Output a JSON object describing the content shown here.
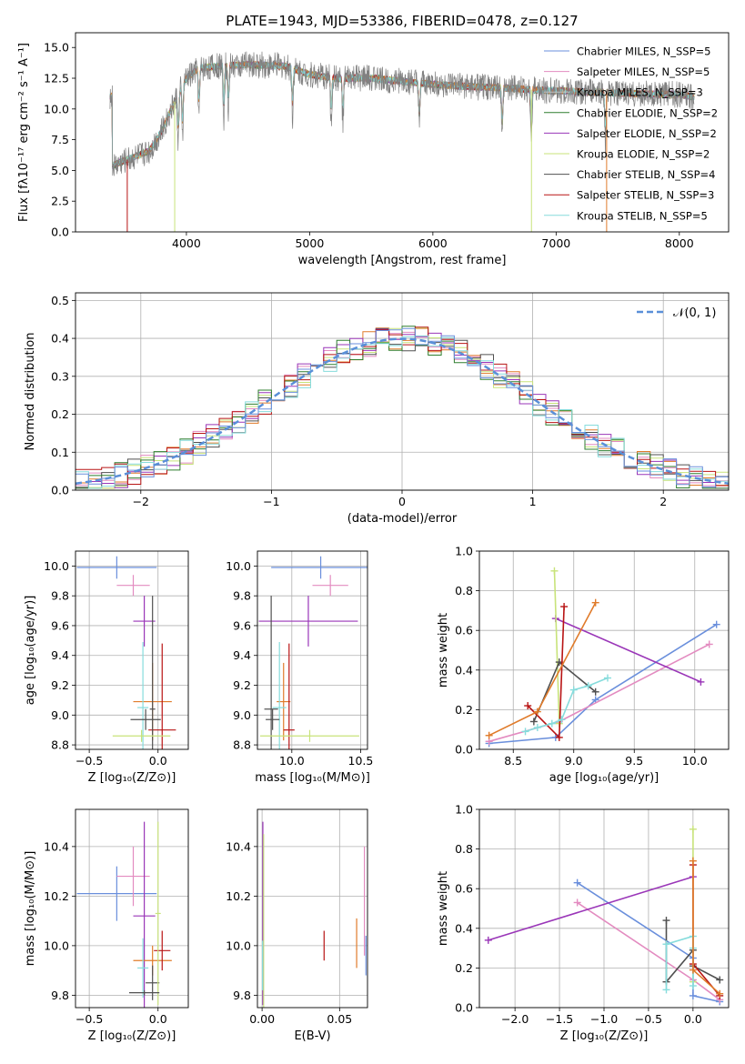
{
  "colors": {
    "chabrier_miles": "#6a8fdc",
    "salpeter_miles": "#e38bc0",
    "kroupa_miles": "#c0c0c0",
    "chabrier_elodie": "#2f7f2f",
    "salpeter_elodie": "#9a36b8",
    "kroupa_elodie": "#c8e37a",
    "chabrier_stelib": "#505050",
    "salpeter_stelib": "#b81414",
    "kroupa_stelib": "#86dcdc",
    "orange": "#e07b2a",
    "normal": "#5a8fd8"
  },
  "chart_data": [
    {
      "id": "spectrum",
      "type": "line",
      "title": "PLATE=1943, MJD=53386, FIBERID=0478, z=0.127",
      "xlabel": "wavelength [Angstrom, rest frame]",
      "ylabel": "Flux [fλ10⁻¹⁷ erg cm⁻² s⁻¹ A⁻¹]",
      "xlim": [
        3100,
        8400
      ],
      "ylim": [
        0,
        16.2
      ],
      "xticks": [
        4000,
        5000,
        6000,
        7000,
        8000
      ],
      "yticks": [
        0.0,
        2.5,
        5.0,
        7.5,
        10.0,
        12.5,
        15.0
      ],
      "ytick_labels": [
        "0.0",
        "2.5",
        "5.0",
        "7.5",
        "10.0",
        "12.5",
        "15.0"
      ],
      "legend": [
        "Chabrier MILES, N_SSP=5",
        "Salpeter MILES, N_SSP=5",
        "Kroupa MILES, N_SSP=3",
        "Chabrier ELODIE, N_SSP=2",
        "Salpeter ELODIE, N_SSP=2",
        "Kroupa ELODIE, N_SSP=2",
        "Chabrier STELIB, N_SSP=4",
        "Salpeter STELIB, N_SSP=3",
        "Kroupa STELIB, N_SSP=5"
      ],
      "legend_placement": "upper-right",
      "continuum": {
        "x": [
          3400,
          3500,
          3600,
          3700,
          3800,
          3900,
          4000,
          4100,
          4300,
          4500,
          4800,
          5000,
          5200,
          5500,
          5800,
          6000,
          6300,
          6600,
          6900,
          7200,
          7500,
          7800,
          8000,
          8100
        ],
        "y": [
          5.4,
          5.8,
          6.2,
          6.6,
          8.2,
          10.5,
          12.5,
          13.3,
          13.5,
          13.6,
          13.5,
          12.8,
          12.5,
          12.5,
          12.2,
          12.0,
          11.8,
          11.7,
          11.5,
          11.4,
          11.3,
          11.2,
          11.2,
          11.0
        ]
      },
      "absorption_lines": [
        3934,
        3969,
        4102,
        4304,
        4341,
        4861,
        5175,
        5270,
        5890,
        6563,
        6800,
        7400
      ]
    },
    {
      "id": "residuals",
      "type": "line",
      "xlabel": "(data-model)/error",
      "ylabel": "Normed distribution",
      "xlim": [
        -2.5,
        2.5
      ],
      "ylim": [
        0,
        0.52
      ],
      "xticks": [
        -2,
        -1,
        0,
        1,
        2
      ],
      "xtick_labels": [
        "−2",
        "−1",
        "0",
        "1",
        "2"
      ],
      "yticks": [
        0.0,
        0.1,
        0.2,
        0.3,
        0.4,
        0.5
      ],
      "ytick_labels": [
        "0.0",
        "0.1",
        "0.2",
        "0.3",
        "0.4",
        "0.5"
      ],
      "grid": true,
      "legend": [
        "𝒩(0, 1)"
      ],
      "legend_placement": "upper-right",
      "normal_curve": {
        "mu": 0,
        "sigma": 1
      }
    },
    {
      "id": "age-vs-Z",
      "type": "scatter",
      "xlabel": "Z [log₁₀(Z/Z⊙)]",
      "ylabel": "age  [log₁₀(age/yr)]",
      "xlim": [
        -0.6,
        0.22
      ],
      "ylim": [
        8.77,
        10.1
      ],
      "xticks": [
        -0.5,
        0.0
      ],
      "xtick_labels": [
        "−0.5",
        "0.0"
      ],
      "yticks": [
        8.8,
        9.0,
        9.2,
        9.4,
        9.6,
        9.8,
        10.0
      ],
      "ytick_labels": [
        "8.8",
        "9.0",
        "9.2",
        "9.4",
        "9.6",
        "9.8",
        "10.0"
      ],
      "grid": true,
      "points": [
        {
          "x": -0.3,
          "y": 9.99,
          "xerr": 0.29,
          "yerr": 0.075,
          "color": "chabrier_miles"
        },
        {
          "x": -0.18,
          "y": 9.87,
          "xerr": 0.12,
          "yerr": 0.07,
          "color": "salpeter_miles"
        },
        {
          "x": -0.1,
          "y": 9.63,
          "xerr": 0.08,
          "yerr": 0.17,
          "color": "salpeter_elodie"
        },
        {
          "x": -0.04,
          "y": 9.09,
          "xerr": 0.14,
          "yerr": 0.26,
          "color": "orange"
        },
        {
          "x": 0.03,
          "y": 8.9,
          "xerr": 0.1,
          "yerr": 0.58,
          "color": "salpeter_stelib"
        },
        {
          "x": -0.11,
          "y": 9.05,
          "xerr": 0.04,
          "yerr": 0.44,
          "color": "kroupa_stelib"
        },
        {
          "x": -0.04,
          "y": 9.04,
          "xerr": 0.02,
          "yerr": 0.76,
          "color": "chabrier_stelib"
        },
        {
          "x": -0.12,
          "y": 8.86,
          "xerr": 0.21,
          "yerr": 0.04,
          "color": "kroupa_elodie"
        },
        {
          "x": -0.09,
          "y": 8.97,
          "xerr": 0.11,
          "yerr": 0.07,
          "color": "chabrier_stelib"
        }
      ]
    },
    {
      "id": "age-vs-mass",
      "type": "scatter",
      "xlabel": "mass [log₁₀(M/M⊙)]",
      "ylabel": "",
      "xlim": [
        9.75,
        10.55
      ],
      "ylim": [
        8.77,
        10.1
      ],
      "xticks": [
        10.0,
        10.5
      ],
      "xtick_labels": [
        "10.0",
        "10.5"
      ],
      "yticks": [
        8.8,
        9.0,
        9.2,
        9.4,
        9.6,
        9.8,
        10.0
      ],
      "ytick_labels": [
        "8.8",
        "9.0",
        "9.2",
        "9.4",
        "9.6",
        "9.8",
        "10.0"
      ],
      "grid": true,
      "points": [
        {
          "x": 10.21,
          "y": 9.99,
          "xerr": 0.36,
          "yerr": 0.075,
          "color": "chabrier_miles"
        },
        {
          "x": 10.28,
          "y": 9.87,
          "xerr": 0.13,
          "yerr": 0.07,
          "color": "salpeter_miles"
        },
        {
          "x": 10.12,
          "y": 9.63,
          "xerr": 0.36,
          "yerr": 0.17,
          "color": "salpeter_elodie"
        },
        {
          "x": 9.94,
          "y": 9.09,
          "xerr": 0.05,
          "yerr": 0.26,
          "color": "orange"
        },
        {
          "x": 9.98,
          "y": 8.9,
          "xerr": 0.04,
          "yerr": 0.58,
          "color": "salpeter_stelib"
        },
        {
          "x": 9.91,
          "y": 9.05,
          "xerr": 0.05,
          "yerr": 0.44,
          "color": "kroupa_stelib"
        },
        {
          "x": 9.85,
          "y": 9.04,
          "xerr": 0.05,
          "yerr": 0.76,
          "color": "chabrier_stelib"
        },
        {
          "x": 10.13,
          "y": 8.86,
          "xerr": 0.36,
          "yerr": 0.04,
          "color": "kroupa_elodie"
        },
        {
          "x": 9.86,
          "y": 8.97,
          "xerr": 0.05,
          "yerr": 0.07,
          "color": "chabrier_stelib"
        }
      ]
    },
    {
      "id": "weight-vs-age",
      "type": "line",
      "xlabel": "age  [log₁₀(age/yr)]",
      "ylabel": "mass weight",
      "xlim": [
        8.22,
        10.28
      ],
      "ylim": [
        0,
        1.0
      ],
      "xticks": [
        8.5,
        9.0,
        9.5,
        10.0
      ],
      "xtick_labels": [
        "8.5",
        "9.0",
        "9.5",
        "10.0"
      ],
      "yticks": [
        0.0,
        0.2,
        0.4,
        0.6,
        0.8,
        1.0
      ],
      "ytick_labels": [
        "0.0",
        "0.2",
        "0.4",
        "0.6",
        "0.8",
        "1.0"
      ],
      "grid": true,
      "series": [
        {
          "color": "chabrier_miles",
          "x": [
            8.3,
            8.85,
            9.18,
            10.18
          ],
          "y": [
            0.03,
            0.06,
            0.25,
            0.63
          ]
        },
        {
          "color": "salpeter_miles",
          "x": [
            8.3,
            8.88,
            10.12
          ],
          "y": [
            0.04,
            0.14,
            0.53
          ]
        },
        {
          "color": "salpeter_elodie",
          "x": [
            8.85,
            10.05
          ],
          "y": [
            0.66,
            0.34
          ]
        },
        {
          "color": "kroupa_elodie",
          "x": [
            8.84,
            8.88
          ],
          "y": [
            0.9,
            0.13
          ]
        },
        {
          "color": "chabrier_stelib",
          "x": [
            8.67,
            8.88,
            9.18
          ],
          "y": [
            0.14,
            0.44,
            0.29
          ]
        },
        {
          "color": "salpeter_stelib",
          "x": [
            8.62,
            8.88,
            8.92
          ],
          "y": [
            0.22,
            0.06,
            0.72
          ]
        },
        {
          "color": "kroupa_stelib",
          "x": [
            8.6,
            8.7,
            8.82,
            8.9,
            9.0,
            9.12,
            9.28
          ],
          "y": [
            0.09,
            0.11,
            0.13,
            0.15,
            0.3,
            0.32,
            0.36
          ]
        },
        {
          "color": "orange",
          "x": [
            8.3,
            8.7,
            9.18
          ],
          "y": [
            0.07,
            0.19,
            0.74
          ]
        }
      ]
    },
    {
      "id": "mass-vs-Z",
      "type": "scatter",
      "xlabel": "Z [log₁₀(Z/Z⊙)]",
      "ylabel": "mass [log₁₀(M/M⊙)]",
      "xlim": [
        -0.6,
        0.22
      ],
      "ylim": [
        9.75,
        10.55
      ],
      "xticks": [
        -0.5,
        0.0
      ],
      "xtick_labels": [
        "−0.5",
        "0.0"
      ],
      "yticks": [
        9.8,
        10.0,
        10.2,
        10.4
      ],
      "ytick_labels": [
        "9.8",
        "10.0",
        "10.2",
        "10.4"
      ],
      "grid": true,
      "points": [
        {
          "x": -0.3,
          "y": 10.21,
          "xerr": 0.29,
          "yerr": 0.11,
          "color": "chabrier_miles"
        },
        {
          "x": -0.18,
          "y": 10.28,
          "xerr": 0.12,
          "yerr": 0.12,
          "color": "salpeter_miles"
        },
        {
          "x": -0.1,
          "y": 10.12,
          "xerr": 0.08,
          "yerr": 0.38,
          "color": "salpeter_elodie"
        },
        {
          "x": -0.04,
          "y": 9.94,
          "xerr": 0.14,
          "yerr": 0.06,
          "color": "orange"
        },
        {
          "x": 0.03,
          "y": 9.98,
          "xerr": 0.06,
          "yerr": 0.08,
          "color": "salpeter_stelib"
        },
        {
          "x": -0.11,
          "y": 9.91,
          "xerr": 0.04,
          "yerr": 0.12,
          "color": "kroupa_stelib"
        },
        {
          "x": -0.04,
          "y": 9.85,
          "xerr": 0.05,
          "yerr": 0.07,
          "color": "chabrier_stelib"
        },
        {
          "x": 0.0,
          "y": 10.13,
          "xerr": 0.02,
          "yerr": 0.37,
          "color": "kroupa_elodie"
        },
        {
          "x": -0.1,
          "y": 9.81,
          "xerr": 0.11,
          "yerr": 0.01,
          "color": "chabrier_stelib"
        }
      ]
    },
    {
      "id": "mass-vs-EBV",
      "type": "scatter",
      "xlabel": "E(B-V)",
      "ylabel": "",
      "xlim": [
        -0.003,
        0.068
      ],
      "ylim": [
        9.75,
        10.55
      ],
      "xticks": [
        0.0,
        0.05
      ],
      "xtick_labels": [
        "0.00",
        "0.05"
      ],
      "yticks": [
        9.8,
        10.0,
        10.2,
        10.4
      ],
      "ytick_labels": [
        "9.8",
        "10.0",
        "10.2",
        "10.4"
      ],
      "grid": true,
      "points": [
        {
          "x": 0.0005,
          "y": 10.13,
          "xerr": 0,
          "yerr": 0.37,
          "color": "salpeter_elodie"
        },
        {
          "x": 0.001,
          "y": 10.1,
          "xerr": 0,
          "yerr": 0.35,
          "color": "kroupa_elodie"
        },
        {
          "x": 0.0003,
          "y": 9.92,
          "xerr": 0,
          "yerr": 0.1,
          "color": "kroupa_stelib"
        },
        {
          "x": 0.04,
          "y": 10.0,
          "xerr": 0,
          "yerr": 0.06,
          "color": "salpeter_stelib"
        },
        {
          "x": 0.061,
          "y": 10.01,
          "xerr": 0,
          "yerr": 0.1,
          "color": "orange"
        },
        {
          "x": 0.066,
          "y": 10.18,
          "xerr": 0,
          "yerr": 0.22,
          "color": "salpeter_miles"
        },
        {
          "x": 0.067,
          "y": 9.96,
          "xerr": 0,
          "yerr": 0.08,
          "color": "chabrier_miles"
        }
      ]
    },
    {
      "id": "weight-vs-Z",
      "type": "line",
      "xlabel": "Z [log₁₀(Z/Z⊙)]",
      "ylabel": "mass weight",
      "xlim": [
        -2.4,
        0.4
      ],
      "ylim": [
        0,
        1.0
      ],
      "xticks": [
        -2.0,
        -1.5,
        -1.0,
        -0.5,
        0.0
      ],
      "xtick_labels": [
        "−2.0",
        "−1.5",
        "−1.0",
        "−0.5",
        "0.0"
      ],
      "yticks": [
        0.0,
        0.2,
        0.4,
        0.6,
        0.8,
        1.0
      ],
      "ytick_labels": [
        "0.0",
        "0.2",
        "0.4",
        "0.6",
        "0.8",
        "1.0"
      ],
      "grid": true,
      "series": [
        {
          "color": "chabrier_miles",
          "x": [
            -1.3,
            0.0,
            0.0,
            0.3
          ],
          "y": [
            0.63,
            0.25,
            0.06,
            0.03
          ]
        },
        {
          "color": "salpeter_miles",
          "x": [
            -1.3,
            0.0,
            0.3
          ],
          "y": [
            0.53,
            0.14,
            0.04
          ]
        },
        {
          "color": "salpeter_elodie",
          "x": [
            -2.3,
            0.0
          ],
          "y": [
            0.34,
            0.66
          ]
        },
        {
          "color": "kroupa_elodie",
          "x": [
            0.0,
            0.0
          ],
          "y": [
            0.9,
            0.13
          ]
        },
        {
          "color": "chabrier_stelib",
          "x": [
            -0.3,
            -0.3,
            0.0,
            0.0,
            0.3
          ],
          "y": [
            0.44,
            0.13,
            0.29,
            0.21,
            0.14
          ]
        },
        {
          "color": "salpeter_stelib",
          "x": [
            0.0,
            0.0,
            0.3
          ],
          "y": [
            0.72,
            0.22,
            0.06
          ]
        },
        {
          "color": "kroupa_stelib",
          "x": [
            -0.3,
            -0.3,
            0.0,
            0.0,
            0.0
          ],
          "y": [
            0.09,
            0.32,
            0.36,
            0.11,
            0.3
          ]
        },
        {
          "color": "orange",
          "x": [
            0.0,
            0.0,
            0.3
          ],
          "y": [
            0.74,
            0.19,
            0.07
          ]
        }
      ]
    }
  ]
}
